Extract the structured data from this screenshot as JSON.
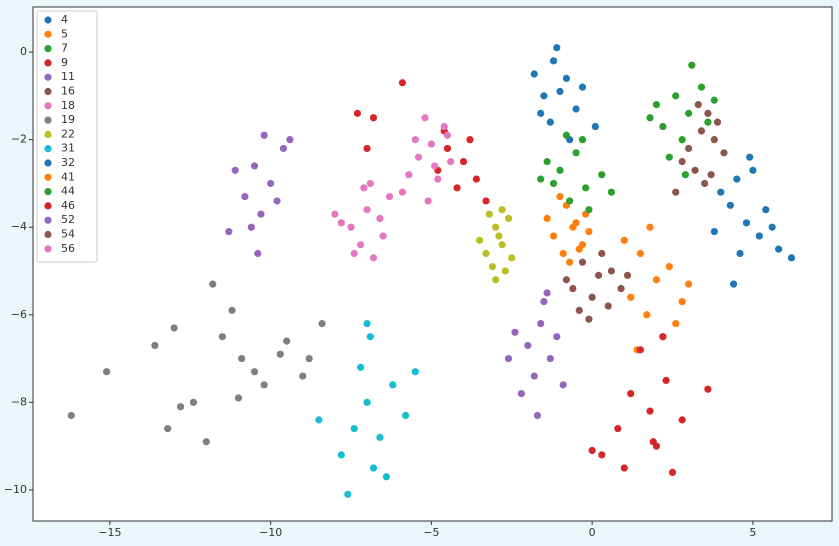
{
  "chart_data": {
    "type": "scatter",
    "xlim": [
      -17.39,
      7.46
    ],
    "ylim": [
      -10.71,
      1.03
    ],
    "xticks": [
      {
        "value": -15,
        "label": "−15"
      },
      {
        "value": -10,
        "label": "−10"
      },
      {
        "value": -5,
        "label": "−5"
      },
      0,
      5
    ],
    "yticks": [
      0,
      {
        "value": -2,
        "label": "−2"
      },
      {
        "value": -4,
        "label": "−4"
      },
      {
        "value": -6,
        "label": "−6"
      },
      {
        "value": -8,
        "label": "−8"
      },
      {
        "value": -10,
        "label": "−10"
      }
    ],
    "grid": false,
    "legend": "upper left",
    "series": [
      {
        "name": "4",
        "color": "#1f77b4",
        "x": [
          -1.2,
          -0.8,
          -1.5,
          -0.5,
          -1.0,
          -1.8,
          -0.3,
          -1.3,
          -0.7,
          -1.1,
          0.1,
          -1.6
        ],
        "values": [
          -0.2,
          -0.6,
          -1.0,
          -1.3,
          -0.9,
          -0.5,
          -0.8,
          -1.6,
          -2.0,
          0.1,
          -1.7,
          -1.4
        ]
      },
      {
        "name": "5",
        "color": "#ff7f0e",
        "x": [
          -0.8,
          -0.5,
          -1.2,
          -0.3,
          -0.9,
          -0.6,
          -1.4,
          -0.1,
          -0.7,
          -1.0,
          -0.4,
          -0.2
        ],
        "values": [
          -3.5,
          -3.9,
          -4.2,
          -4.4,
          -4.6,
          -4.0,
          -3.8,
          -4.1,
          -4.8,
          -3.3,
          -4.5,
          -3.7
        ]
      },
      {
        "name": "7",
        "color": "#2ca02c",
        "x": [
          -0.5,
          -1.0,
          -0.2,
          -1.4,
          0.3,
          -0.7,
          -0.3,
          -1.2,
          0.6,
          -0.8,
          -0.1,
          -1.6
        ],
        "values": [
          -2.3,
          -2.7,
          -3.1,
          -2.5,
          -2.8,
          -3.4,
          -2.0,
          -3.0,
          -3.2,
          -1.9,
          -3.6,
          -2.9
        ]
      },
      {
        "name": "9",
        "color": "#d62728",
        "x": [
          -4.5,
          -4.0,
          -3.6,
          -4.8,
          -4.2,
          -3.8,
          -4.6,
          -3.3,
          -7.3,
          -6.8,
          -5.9,
          -7.0
        ],
        "values": [
          -2.2,
          -2.5,
          -2.9,
          -2.7,
          -3.1,
          -2.0,
          -1.8,
          -3.4,
          -1.4,
          -1.5,
          -0.7,
          -2.2
        ]
      },
      {
        "name": "11",
        "color": "#9467bd",
        "x": [
          -10.5,
          -10.0,
          -10.8,
          -9.6,
          -10.3,
          -11.1,
          -9.8,
          -10.6,
          -10.2,
          -9.4,
          -11.3,
          -10.4
        ],
        "values": [
          -2.6,
          -3.0,
          -3.3,
          -2.2,
          -3.7,
          -2.7,
          -3.4,
          -4.0,
          -1.9,
          -2.0,
          -4.1,
          -4.6
        ]
      },
      {
        "name": "16",
        "color": "#8c564b",
        "x": [
          -0.3,
          0.2,
          -0.6,
          0.6,
          0.0,
          -0.8,
          0.9,
          0.3,
          -0.4,
          0.5,
          -0.1,
          1.1
        ],
        "values": [
          -4.8,
          -5.1,
          -5.4,
          -5.0,
          -5.6,
          -5.2,
          -5.4,
          -4.6,
          -5.9,
          -5.8,
          -6.1,
          -5.1
        ]
      },
      {
        "name": "18",
        "color": "#e377c2",
        "x": [
          -5.0,
          -5.4,
          -4.6,
          -5.7,
          -4.8,
          -5.2,
          -4.4,
          -5.9,
          -5.1,
          -4.5,
          -5.5,
          -4.9
        ],
        "values": [
          -2.1,
          -2.4,
          -1.7,
          -2.8,
          -2.9,
          -1.5,
          -2.5,
          -3.2,
          -3.4,
          -1.9,
          -2.0,
          -2.6
        ]
      },
      {
        "name": "19",
        "color": "#7f7f7f",
        "x": [
          -16.2,
          -15.1,
          -13.6,
          -13.0,
          -12.4,
          -11.8,
          -11.5,
          -10.9,
          -10.5,
          -11.2,
          -12.0,
          -9.5,
          -9.0,
          -8.4,
          -8.8,
          -10.2,
          -13.2,
          -12.8,
          -11.0,
          -9.7
        ],
        "values": [
          -8.3,
          -7.3,
          -6.7,
          -6.3,
          -8.0,
          -5.3,
          -6.5,
          -7.0,
          -7.3,
          -5.9,
          -8.9,
          -6.6,
          -7.4,
          -6.2,
          -7.0,
          -7.6,
          -8.6,
          -8.1,
          -7.9,
          -6.9
        ]
      },
      {
        "name": "22",
        "color": "#bcbd22",
        "x": [
          -3.0,
          -2.8,
          -3.3,
          -2.6,
          -3.1,
          -2.9,
          -3.5,
          -2.7,
          -3.2,
          -2.5,
          -3.0,
          -2.8
        ],
        "values": [
          -4.0,
          -4.4,
          -4.6,
          -3.8,
          -4.9,
          -4.2,
          -4.3,
          -5.0,
          -3.7,
          -4.7,
          -5.2,
          -3.6
        ]
      },
      {
        "name": "31",
        "color": "#17becf",
        "x": [
          -7.0,
          -7.4,
          -6.6,
          -6.2,
          -7.8,
          -6.8,
          -7.2,
          -5.8,
          -6.4,
          -7.6,
          -6.9,
          -7.0,
          -8.5,
          -5.5
        ],
        "values": [
          -8.0,
          -8.6,
          -8.8,
          -7.6,
          -9.2,
          -9.5,
          -7.2,
          -8.3,
          -9.7,
          -10.1,
          -6.5,
          -6.2,
          -8.4,
          -7.3
        ]
      },
      {
        "name": "32",
        "color": "#1f77b4",
        "x": [
          4.3,
          4.8,
          5.2,
          4.6,
          5.6,
          4.0,
          5.0,
          5.8,
          4.4,
          5.4,
          6.2,
          4.9,
          3.8,
          4.5
        ],
        "values": [
          -3.5,
          -3.9,
          -4.2,
          -4.6,
          -4.0,
          -3.2,
          -2.7,
          -4.5,
          -5.3,
          -3.6,
          -4.7,
          -2.4,
          -4.1,
          -2.9
        ]
      },
      {
        "name": "41",
        "color": "#ff7f0e",
        "x": [
          1.5,
          2.0,
          1.2,
          2.4,
          1.7,
          2.8,
          1.0,
          2.2,
          1.8,
          2.6,
          1.4,
          3.0
        ],
        "values": [
          -4.6,
          -5.2,
          -5.6,
          -4.9,
          -6.0,
          -5.7,
          -4.3,
          -6.5,
          -4.0,
          -6.2,
          -6.8,
          -5.3
        ]
      },
      {
        "name": "44",
        "color": "#2ca02c",
        "x": [
          2.6,
          3.0,
          2.2,
          3.4,
          2.8,
          2.0,
          3.6,
          2.4,
          3.1,
          1.8,
          3.8,
          2.9
        ],
        "values": [
          -1.0,
          -1.4,
          -1.7,
          -0.8,
          -2.0,
          -1.2,
          -1.6,
          -2.4,
          -0.3,
          -1.5,
          -1.1,
          -2.8
        ]
      },
      {
        "name": "46",
        "color": "#d62728",
        "x": [
          1.2,
          1.8,
          2.3,
          0.8,
          2.0,
          1.5,
          2.8,
          0.3,
          1.0,
          2.5,
          3.6,
          1.9,
          2.2,
          0.0
        ],
        "values": [
          -7.8,
          -8.2,
          -7.5,
          -8.6,
          -9.0,
          -6.8,
          -8.4,
          -9.2,
          -9.5,
          -9.6,
          -7.7,
          -8.9,
          -6.5,
          -9.1
        ]
      },
      {
        "name": "52",
        "color": "#9467bd",
        "x": [
          -1.6,
          -2.0,
          -1.3,
          -2.4,
          -1.8,
          -1.1,
          -2.2,
          -1.5,
          -0.9,
          -2.6,
          -1.7,
          -1.4
        ],
        "values": [
          -6.2,
          -6.7,
          -7.0,
          -6.4,
          -7.4,
          -6.5,
          -7.8,
          -5.7,
          -7.6,
          -7.0,
          -8.3,
          -5.5
        ]
      },
      {
        "name": "54",
        "color": "#8c564b",
        "x": [
          3.4,
          3.0,
          3.8,
          3.2,
          3.6,
          2.8,
          4.1,
          3.5,
          2.6,
          3.9,
          3.3,
          3.7
        ],
        "values": [
          -1.8,
          -2.2,
          -2.0,
          -2.7,
          -1.4,
          -2.5,
          -2.3,
          -3.0,
          -3.2,
          -1.6,
          -1.2,
          -2.8
        ]
      },
      {
        "name": "56",
        "color": "#e377c2",
        "x": [
          -7.0,
          -7.5,
          -6.6,
          -7.2,
          -6.3,
          -7.8,
          -6.8,
          -7.1,
          -6.5,
          -7.4,
          -6.9,
          -8.0
        ],
        "values": [
          -3.6,
          -4.0,
          -3.8,
          -4.4,
          -3.3,
          -3.9,
          -4.7,
          -3.1,
          -4.2,
          -4.6,
          -3.0,
          -3.7
        ]
      }
    ]
  }
}
